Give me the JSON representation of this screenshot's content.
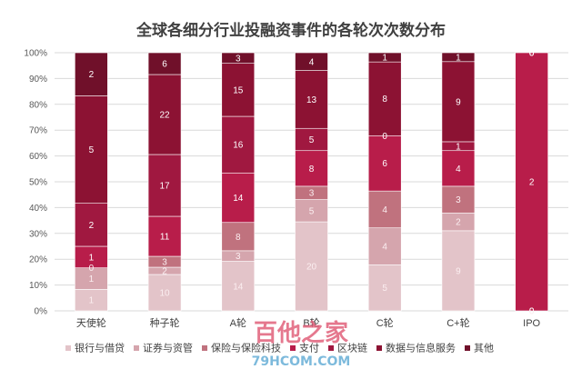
{
  "chart_data": {
    "type": "bar",
    "stacked": "percent",
    "title": "全球各细分行业投融资事件的各轮次次数分布",
    "xlabel": "",
    "ylabel": "",
    "ylim": [
      0,
      100
    ],
    "y_ticks": [
      "0%",
      "10%",
      "20%",
      "30%",
      "40%",
      "50%",
      "60%",
      "70%",
      "80%",
      "90%",
      "100%"
    ],
    "grid": "horizontal",
    "legend_position": "bottom",
    "categories": [
      "天使轮",
      "种子轮",
      "A轮",
      "B轮",
      "C轮",
      "C+轮",
      "IPO"
    ],
    "series": [
      {
        "name": "银行与借贷",
        "color": "#e3c4c9",
        "values": [
          1,
          10,
          14,
          20,
          5,
          9,
          0
        ]
      },
      {
        "name": "证券与资管",
        "color": "#d5a5ad",
        "values": [
          1,
          2,
          3,
          5,
          4,
          2,
          0
        ]
      },
      {
        "name": "保险与保险科技",
        "color": "#c0727e",
        "values": [
          0,
          3,
          8,
          3,
          4,
          3,
          0
        ]
      },
      {
        "name": "支付",
        "color": "#b81d4a",
        "values": [
          1,
          11,
          14,
          8,
          6,
          4,
          2
        ]
      },
      {
        "name": "区块链",
        "color": "#a01840",
        "values": [
          2,
          17,
          16,
          5,
          0,
          1,
          0
        ]
      },
      {
        "name": "数据与信息服务",
        "color": "#8c1233",
        "values": [
          5,
          22,
          15,
          13,
          8,
          9,
          0
        ]
      },
      {
        "name": "其他",
        "color": "#70102a",
        "values": [
          2,
          6,
          3,
          4,
          1,
          1,
          0
        ]
      }
    ]
  },
  "watermark": {
    "title": "百他之家",
    "url": "79HCOM.COM"
  }
}
